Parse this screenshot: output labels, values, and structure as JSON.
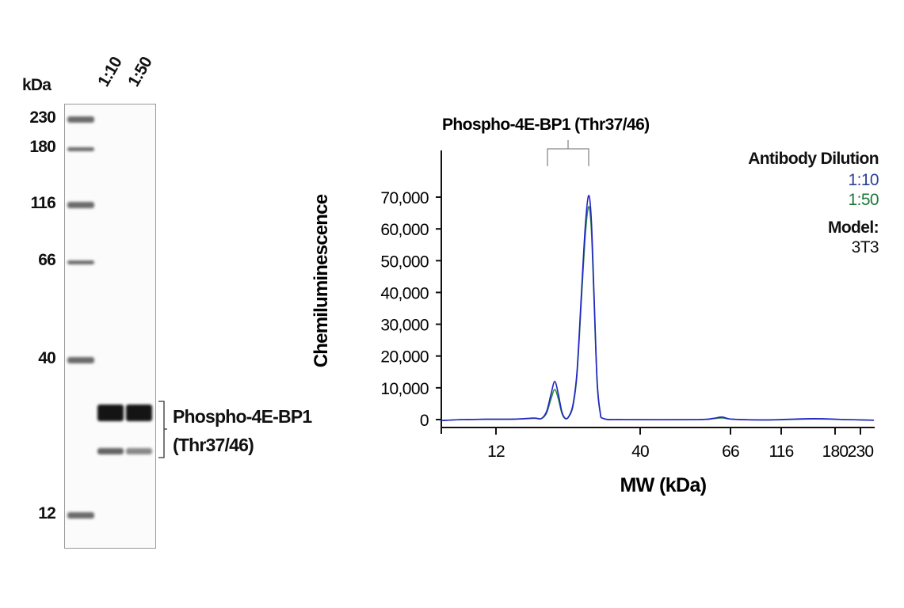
{
  "blot": {
    "unit_label": "kDa",
    "lanes": [
      "1:10",
      "1:50"
    ],
    "ladder": [
      "230",
      "180",
      "116",
      "66",
      "40",
      "12"
    ],
    "target_label_line1": "Phospho-4E-BP1",
    "target_label_line2": "(Thr37/46)",
    "band_intensity": {
      "upper": [
        1.0,
        1.0
      ],
      "lower": [
        0.6,
        0.4
      ]
    }
  },
  "chart_data": {
    "type": "line",
    "title": "Phospho-4E-BP1 (Thr37/46)",
    "xlabel": "MW (kDa)",
    "ylabel": "Chemiluminescence",
    "x_ticks": [
      12,
      40,
      66,
      116,
      180,
      230
    ],
    "x_tick_labels": [
      "12",
      "40",
      "66",
      "116",
      "180",
      "230"
    ],
    "y_ticks": [
      0,
      10000,
      20000,
      30000,
      40000,
      50000,
      60000,
      70000
    ],
    "y_tick_labels": [
      "0",
      "10,000",
      "20,000",
      "30,000",
      "40,000",
      "50,000",
      "60,000",
      "70,000"
    ],
    "xlim": [
      7.6,
      262
    ],
    "ylim": [
      -2500,
      85000
    ],
    "grid": false,
    "legend": {
      "title": "Antibody Dilution",
      "placement": "top-right",
      "model_label": "Model:",
      "model_value": "3T3"
    },
    "series": [
      {
        "name": "1:50",
        "color": "#2e8b3e",
        "points": [
          [
            7.6,
            -300
          ],
          [
            9,
            0
          ],
          [
            11,
            100
          ],
          [
            14,
            150
          ],
          [
            16.5,
            400
          ],
          [
            17.5,
            300
          ],
          [
            18.3,
            2000
          ],
          [
            19,
            6500
          ],
          [
            19.6,
            9500
          ],
          [
            20.2,
            6500
          ],
          [
            20.8,
            2000
          ],
          [
            21.4,
            300
          ],
          [
            22,
            800
          ],
          [
            22.8,
            4000
          ],
          [
            23.6,
            14000
          ],
          [
            24.5,
            38000
          ],
          [
            25.3,
            58000
          ],
          [
            26,
            67000
          ],
          [
            26.6,
            60000
          ],
          [
            27.2,
            38000
          ],
          [
            27.9,
            12000
          ],
          [
            28.6,
            2500
          ],
          [
            29.5,
            300
          ],
          [
            35,
            0
          ],
          [
            55,
            0
          ],
          [
            60,
            300
          ],
          [
            63,
            500
          ],
          [
            68,
            100
          ],
          [
            100,
            -100
          ],
          [
            150,
            200
          ],
          [
            200,
            0
          ],
          [
            262,
            -200
          ]
        ]
      },
      {
        "name": "1:10",
        "color": "#2323c8",
        "points": [
          [
            7.6,
            -300
          ],
          [
            9,
            0
          ],
          [
            11,
            100
          ],
          [
            14,
            150
          ],
          [
            16.5,
            500
          ],
          [
            17.5,
            300
          ],
          [
            18.3,
            2500
          ],
          [
            19,
            8000
          ],
          [
            19.6,
            12000
          ],
          [
            20.2,
            8000
          ],
          [
            20.8,
            2500
          ],
          [
            21.4,
            400
          ],
          [
            22,
            900
          ],
          [
            22.8,
            4500
          ],
          [
            23.6,
            15000
          ],
          [
            24.5,
            40000
          ],
          [
            25.3,
            61000
          ],
          [
            26,
            70500
          ],
          [
            26.6,
            63000
          ],
          [
            27.2,
            40000
          ],
          [
            27.9,
            13000
          ],
          [
            28.6,
            2800
          ],
          [
            29.5,
            300
          ],
          [
            35,
            0
          ],
          [
            55,
            0
          ],
          [
            60,
            400
          ],
          [
            63,
            800
          ],
          [
            68,
            100
          ],
          [
            100,
            -100
          ],
          [
            150,
            300
          ],
          [
            200,
            0
          ],
          [
            262,
            -200
          ]
        ]
      }
    ]
  }
}
